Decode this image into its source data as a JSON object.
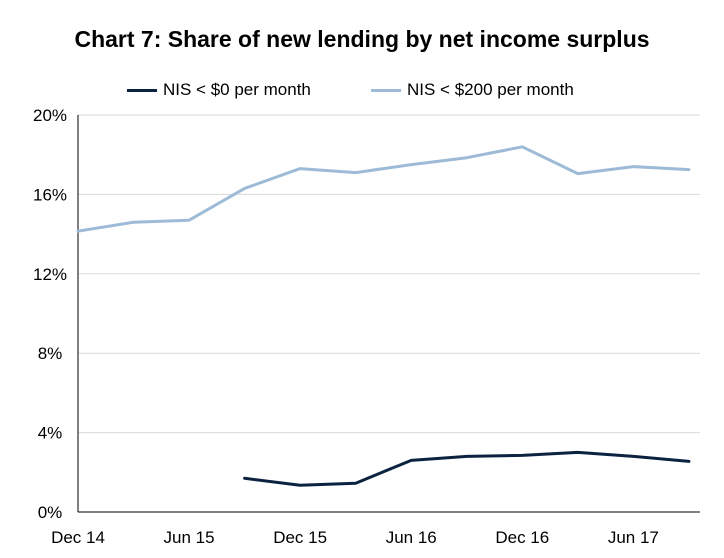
{
  "chart_data": {
    "type": "line",
    "title": "Chart 7: Share of new lending by net income surplus",
    "xlabel": "",
    "ylabel": "",
    "ylim": [
      0,
      20
    ],
    "yticks": [
      0,
      4,
      8,
      12,
      16,
      20
    ],
    "ytick_labels": [
      "0%",
      "4%",
      "8%",
      "12%",
      "16%",
      "20%"
    ],
    "x": [
      "Dec 14",
      "Mar 15",
      "Jun 15",
      "Sep 15",
      "Dec 15",
      "Mar 16",
      "Jun 16",
      "Sep 16",
      "Dec 16",
      "Mar 17",
      "Jun 17",
      "Sep 17"
    ],
    "xtick_labels": [
      "Dec 14",
      "Jun 15",
      "Dec 15",
      "Jun 16",
      "Dec 16",
      "Jun 17"
    ],
    "grid": true,
    "legend": "top",
    "series": [
      {
        "name": "NIS < $0 per month",
        "color": "#0c2340",
        "values": [
          null,
          null,
          null,
          1.7,
          1.35,
          1.45,
          2.6,
          2.8,
          2.85,
          3.0,
          2.8,
          2.55
        ]
      },
      {
        "name": "NIS < $200 per month",
        "color": "#9dbbd6",
        "values": [
          14.15,
          14.6,
          14.7,
          16.3,
          17.3,
          17.1,
          17.5,
          17.85,
          18.4,
          17.05,
          17.4,
          17.25
        ]
      }
    ]
  }
}
